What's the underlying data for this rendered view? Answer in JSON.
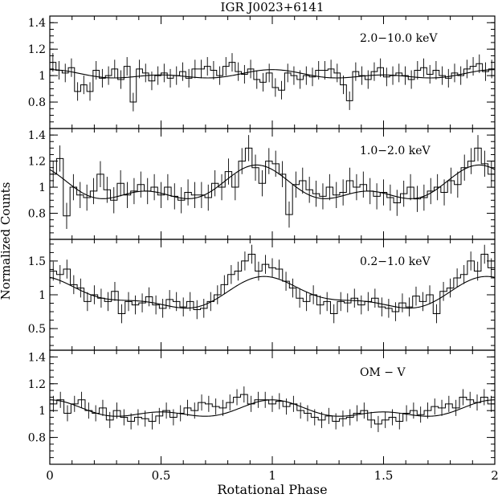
{
  "title": "IGR J0023+6141",
  "ylabel": "Normalized Counts",
  "xlabel": "Rotational Phase",
  "chart_data": [
    {
      "type": "line",
      "label": "2.0−10.0 keV",
      "xlim": [
        0,
        2
      ],
      "ylim": [
        0.6,
        1.45
      ],
      "yticks": [
        0.8,
        1.0,
        1.2,
        1.4
      ],
      "ytick_labels": [
        "0.8",
        "1",
        "1.2",
        "1.4"
      ],
      "histogram": [
        1.1,
        1.04,
        1.02,
        1.06,
        0.88,
        0.93,
        0.88,
        1.04,
        0.98,
        1.0,
        1.05,
        0.97,
        1.07,
        0.8,
        1.05,
        1.02,
        0.96,
        1.0,
        1.02,
        0.98,
        1.0,
        1.03,
        0.98,
        1.05,
        1.05,
        1.07,
        1.04,
        1.0,
        1.07,
        1.1,
        1.03,
        1.01,
        1.05,
        0.97,
        0.95,
        1.02,
        0.91,
        0.89,
        1.02,
        1.0,
        0.97,
        1.0,
        0.99,
        1.04,
        1.04,
        1.05,
        1.02,
        0.93,
        0.81,
        1.03,
        1.0,
        0.97,
        1.03,
        1.06,
        0.99,
        1.0,
        1.02,
        1.0,
        0.97,
        1.04,
        1.06,
        1.01,
        1.04,
        1.0,
        0.98,
        1.02,
        1.0,
        1.05,
        1.07,
        1.09,
        1.03,
        1.05
      ],
      "error": 0.07,
      "model": {
        "mean": 1.005,
        "amp1": 0.02,
        "phi1": 0.0,
        "amp2": 0.02,
        "phi2": 0.0
      }
    },
    {
      "type": "line",
      "label": "1.0−2.0 keV",
      "xlim": [
        0,
        2
      ],
      "ylim": [
        0.6,
        1.45
      ],
      "yticks": [
        0.8,
        1.0,
        1.2,
        1.4
      ],
      "ytick_labels": [
        "0.8",
        "1",
        "1.2",
        "1.4"
      ],
      "histogram": [
        1.1,
        1.22,
        0.78,
        1.0,
        0.94,
        0.92,
        0.97,
        1.1,
        0.98,
        0.9,
        1.03,
        0.94,
        0.97,
        1.02,
        0.97,
        1.0,
        0.94,
        1.0,
        0.93,
        0.9,
        0.96,
        0.94,
        0.94,
        0.92,
        1.03,
        1.0,
        1.12,
        1.0,
        1.2,
        1.3,
        1.15,
        1.03,
        1.2,
        1.18,
        1.1,
        0.79,
        1.02,
        1.05,
        0.98,
        0.95,
        0.93,
        1.0,
        0.94,
        0.96,
        1.05,
        1.0,
        1.02,
        0.97,
        0.93,
        0.96,
        0.92,
        0.88,
        0.95,
        1.0,
        0.91,
        0.92,
        0.97,
        1.0,
        0.96,
        1.05,
        1.02,
        1.15,
        1.2,
        1.3,
        1.18,
        1.1
      ],
      "error": 0.1,
      "model": {
        "mean": 1.0,
        "amp1": 0.1,
        "phi1": 0.93,
        "amp2": 0.07,
        "phi2": 0.43
      }
    },
    {
      "type": "line",
      "label": "0.2−1.0 keV",
      "xlim": [
        0,
        2
      ],
      "ylim": [
        0.18,
        1.82
      ],
      "yticks": [
        0.5,
        1.0,
        1.5
      ],
      "ytick_labels": [
        "0.5",
        "1",
        "1.5"
      ],
      "histogram": [
        1.35,
        1.3,
        1.38,
        1.15,
        1.1,
        0.9,
        1.0,
        0.95,
        0.9,
        1.05,
        0.72,
        0.9,
        0.85,
        0.88,
        0.97,
        0.85,
        0.8,
        0.93,
        0.9,
        0.82,
        0.9,
        0.78,
        0.8,
        0.9,
        1.0,
        1.15,
        1.3,
        1.35,
        1.5,
        1.6,
        1.35,
        1.45,
        1.4,
        1.38,
        1.2,
        1.1,
        0.95,
        0.9,
        1.0,
        0.85,
        0.9,
        0.72,
        0.9,
        0.88,
        0.95,
        0.85,
        0.9,
        0.95,
        0.82,
        0.8,
        0.75,
        0.88,
        0.82,
        0.98,
        0.9,
        1.0,
        0.72,
        1.05,
        1.1,
        1.25,
        1.3,
        1.5,
        1.35,
        1.6,
        1.4
      ],
      "error": 0.14,
      "model": {
        "mean": 1.0,
        "amp1": 0.2,
        "phi1": 0.0,
        "amp2": 0.08,
        "phi2": 0.44
      }
    },
    {
      "type": "line",
      "label": "OM − V",
      "xlim": [
        0,
        2
      ],
      "ylim": [
        0.6,
        1.45
      ],
      "yticks": [
        0.8,
        1.0,
        1.2,
        1.4
      ],
      "ytick_labels": [
        "0.8",
        "1",
        "1.2",
        "1.4"
      ],
      "histogram": [
        1.05,
        1.08,
        0.98,
        1.05,
        1.08,
        1.0,
        0.98,
        1.02,
        0.93,
        1.0,
        0.95,
        0.92,
        0.95,
        0.94,
        0.92,
        0.96,
        1.0,
        0.95,
        0.98,
        1.02,
        1.0,
        1.06,
        1.05,
        1.03,
        1.02,
        1.06,
        1.1,
        1.12,
        1.05,
        1.08,
        1.08,
        1.05,
        1.07,
        1.03,
        1.05,
        1.0,
        0.98,
        0.95,
        0.93,
        0.96,
        0.92,
        0.94,
        0.95,
        0.98,
        1.0,
        0.93,
        0.9,
        0.93,
        0.95,
        0.92,
        0.98,
        1.0,
        0.97,
        1.0,
        1.03,
        1.02,
        1.05,
        1.02,
        1.1,
        1.08,
        1.06,
        1.1,
        1.05
      ],
      "error": 0.06,
      "model": {
        "mean": 1.0,
        "amp1": 0.045,
        "phi1": 0.0,
        "amp2": 0.035,
        "phi2": 0.5
      }
    }
  ],
  "xaxis": {
    "ticks": [
      0,
      0.5,
      1,
      1.5,
      2
    ],
    "tick_labels": [
      "0",
      "0.5",
      "1",
      "1.5",
      "2"
    ]
  }
}
